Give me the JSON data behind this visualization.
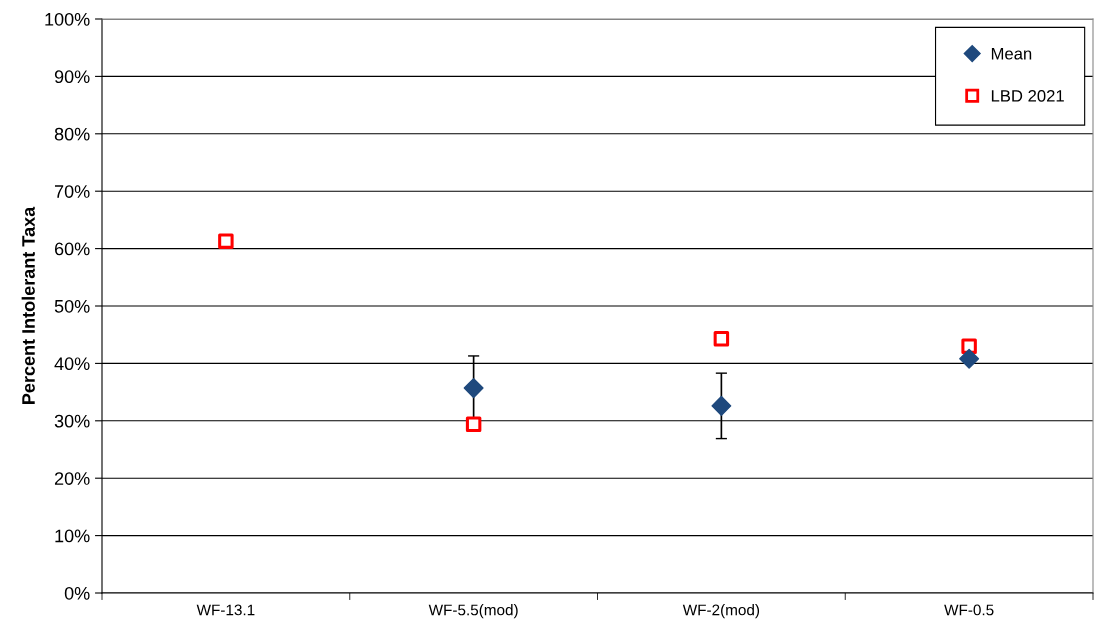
{
  "chart_data": {
    "type": "scatter",
    "ylabel": "Percent Intolerant Taxa",
    "categories": [
      "WF-13.1",
      "WF-5.5(mod)",
      "WF-2(mod)",
      "WF-0.5"
    ],
    "series": [
      {
        "name": "Mean",
        "color": "#1f497d",
        "marker": "diamond",
        "values": [
          null,
          35.7,
          32.6,
          40.8
        ],
        "errors": [
          null,
          5.6,
          5.7,
          null
        ]
      },
      {
        "name": "LBD 2021",
        "color": "#ff0000",
        "marker": "square",
        "values": [
          61.3,
          29.4,
          44.3,
          43.0
        ]
      }
    ],
    "ylim": [
      0,
      100
    ],
    "yticks": [
      {
        "value": 0,
        "label": "0%"
      },
      {
        "value": 10,
        "label": "10%"
      },
      {
        "value": 20,
        "label": "20%"
      },
      {
        "value": 30,
        "label": "30%"
      },
      {
        "value": 40,
        "label": "40%"
      },
      {
        "value": 50,
        "label": "50%"
      },
      {
        "value": 60,
        "label": "60%"
      },
      {
        "value": 70,
        "label": "70%"
      },
      {
        "value": 80,
        "label": "80%"
      },
      {
        "value": 90,
        "label": "90%"
      },
      {
        "value": 100,
        "label": "100%"
      }
    ],
    "grid": "y",
    "legend": "top right"
  }
}
